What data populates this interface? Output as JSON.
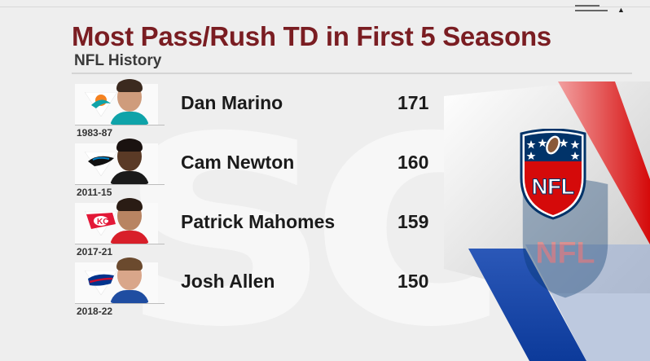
{
  "header": {
    "title": "Most Pass/Rush TD in First 5 Seasons",
    "subtitle": "NFL History"
  },
  "rows": [
    {
      "name": "Dan Marino",
      "value": "171",
      "years": "1983-87",
      "team_logo": "dolphins-logo",
      "team_color": "#0fa3a9",
      "shirt_color": "#0fa3a9",
      "skin": "#cf9c7c"
    },
    {
      "name": "Cam Newton",
      "value": "160",
      "years": "2011-15",
      "team_logo": "panthers-logo",
      "team_color": "#111111",
      "shirt_color": "#1a1a1a",
      "skin": "#5a3a26"
    },
    {
      "name": "Patrick Mahomes",
      "value": "159",
      "years": "2017-21",
      "team_logo": "chiefs-logo",
      "team_color": "#e31837",
      "shirt_color": "#d81f2a",
      "skin": "#b88462"
    },
    {
      "name": "Josh Allen",
      "value": "150",
      "years": "2018-22",
      "team_logo": "bills-logo",
      "team_color": "#00338d",
      "shirt_color": "#1f4da1",
      "skin": "#d9a68a"
    }
  ],
  "colors": {
    "title": "#7a1d22",
    "nfl_red": "#d50a0a",
    "nfl_blue": "#013369",
    "background": "#eeeeee"
  },
  "icons": {
    "nfl": "nfl-shield-logo"
  }
}
